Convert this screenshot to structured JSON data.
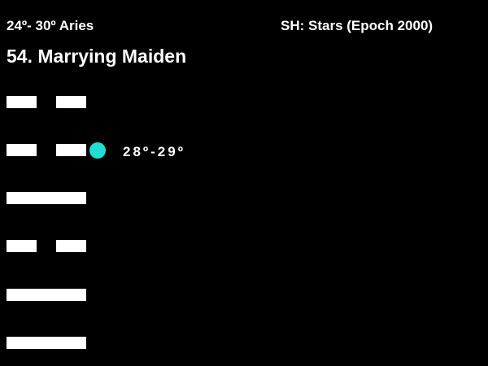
{
  "header": {
    "degree_range": "24º- 30º Aries",
    "source": "SH: Stars  (Epoch 2000)",
    "title": "54. Marrying Maiden"
  },
  "hexagram": {
    "lines_top_to_bottom": [
      "broken",
      "broken",
      "solid",
      "broken",
      "solid",
      "solid"
    ],
    "marker_line_index": 1,
    "marker_color": "#22DDD3",
    "marker_label": "28º-29º"
  }
}
